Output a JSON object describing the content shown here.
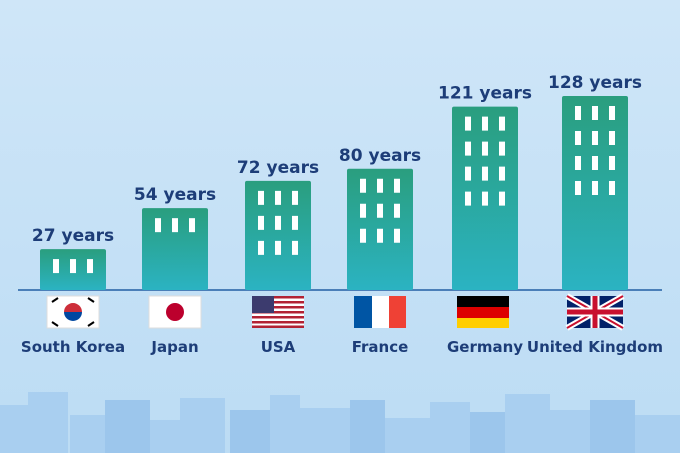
{
  "chart_data": {
    "type": "bar",
    "categories": [
      "South Korea",
      "Japan",
      "USA",
      "France",
      "Germany",
      "United Kingdom"
    ],
    "values": [
      27,
      54,
      72,
      80,
      121,
      128
    ],
    "value_labels": [
      "27 years",
      "54 years",
      "72 years",
      "80 years",
      "121 years",
      "128 years"
    ]
  }
}
